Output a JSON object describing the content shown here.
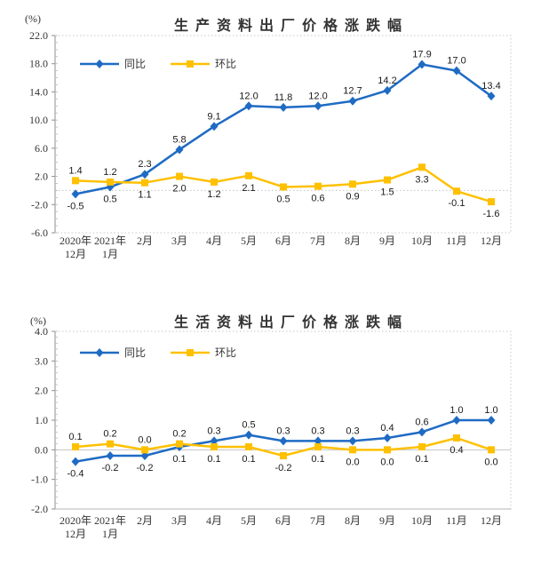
{
  "colors": {
    "yoy_blue": "#1f6bc4",
    "mom_gold": "#ffc000",
    "axis_gray": "#8f8f8f",
    "grid_gray": "#c8c8c8"
  },
  "chart_data": [
    {
      "type": "line",
      "title": "生产资料出厂价格涨跌幅",
      "unit": "(%)",
      "ylim": [
        -6.0,
        22.0
      ],
      "yticks": [
        "22.0",
        "18.0",
        "14.0",
        "10.0",
        "6.0",
        "2.0",
        "-2.0",
        "-6.0"
      ],
      "grid": false,
      "legend_position": "top-left",
      "categories": [
        [
          "2020年",
          "12月"
        ],
        [
          "2021年",
          "1月"
        ],
        [
          "2月"
        ],
        [
          "3月"
        ],
        [
          "4月"
        ],
        [
          "5月"
        ],
        [
          "6月"
        ],
        [
          "7月"
        ],
        [
          "8月"
        ],
        [
          "9月"
        ],
        [
          "10月"
        ],
        [
          "11月"
        ],
        [
          "12月"
        ]
      ],
      "series": [
        {
          "name": "同比",
          "color": "#1f6bc4",
          "marker": "diamond",
          "values": [
            -0.5,
            0.5,
            2.3,
            5.8,
            9.1,
            12.0,
            11.8,
            12.0,
            12.7,
            14.2,
            17.9,
            17.0,
            13.4
          ],
          "label_side": [
            "below",
            "below",
            "above",
            "above",
            "above",
            "above",
            "above",
            "above",
            "above",
            "above",
            "above",
            "above",
            "above"
          ]
        },
        {
          "name": "环比",
          "color": "#ffc000",
          "marker": "square",
          "values": [
            1.4,
            1.2,
            1.1,
            2.0,
            1.2,
            2.1,
            0.5,
            0.6,
            0.9,
            1.5,
            3.3,
            -0.1,
            -1.6
          ],
          "label_side": [
            "above",
            "above",
            "below",
            "below",
            "below",
            "below",
            "below",
            "below",
            "below",
            "below",
            "below",
            "below",
            "below"
          ]
        }
      ]
    },
    {
      "type": "line",
      "title": "生活资料出厂价格涨跌幅",
      "unit": "(%)",
      "ylim": [
        -2.0,
        4.0
      ],
      "yticks": [
        "4.0",
        "3.0",
        "2.0",
        "1.0",
        "0.0",
        "-1.0",
        "-2.0"
      ],
      "grid": false,
      "legend_position": "top-left",
      "categories": [
        [
          "2020年",
          "12月"
        ],
        [
          "2021年",
          "1月"
        ],
        [
          "2月"
        ],
        [
          "3月"
        ],
        [
          "4月"
        ],
        [
          "5月"
        ],
        [
          "6月"
        ],
        [
          "7月"
        ],
        [
          "8月"
        ],
        [
          "9月"
        ],
        [
          "10月"
        ],
        [
          "11月"
        ],
        [
          "12月"
        ]
      ],
      "series": [
        {
          "name": "同比",
          "color": "#1f6bc4",
          "marker": "diamond",
          "values": [
            -0.4,
            -0.2,
            -0.2,
            0.1,
            0.3,
            0.5,
            0.3,
            0.3,
            0.3,
            0.4,
            0.6,
            1.0,
            1.0
          ],
          "label_side": [
            "below",
            "below",
            "below",
            "below",
            "above",
            "above",
            "above",
            "above",
            "above",
            "above",
            "above",
            "above",
            "above"
          ]
        },
        {
          "name": "环比",
          "color": "#ffc000",
          "marker": "square",
          "values": [
            0.1,
            0.2,
            0.0,
            0.2,
            0.1,
            0.1,
            -0.2,
            0.1,
            0.0,
            0.0,
            0.1,
            0.4,
            0.0
          ],
          "label_side": [
            "above",
            "above",
            "above",
            "above",
            "below",
            "below",
            "below",
            "below",
            "below",
            "below",
            "below",
            "below",
            "below"
          ]
        }
      ]
    }
  ]
}
